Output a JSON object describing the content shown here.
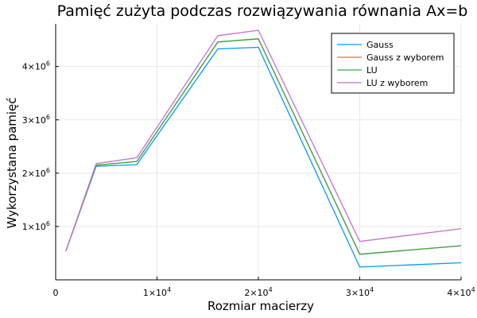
{
  "chart_data": {
    "type": "line",
    "title": "Pamięć zużyta podczas rozwiązywania równania Ax=b",
    "xlabel": "Rozmiar macierzy",
    "ylabel": "Wykorzystana pamięć",
    "xlim": [
      0,
      40000
    ],
    "ylim": [
      0,
      4800000
    ],
    "grid": true,
    "legend_position": "top-right",
    "x_ticks": [
      {
        "value": 0,
        "mant": "0",
        "exp": ""
      },
      {
        "value": 10000,
        "mant": "1×10",
        "exp": "4"
      },
      {
        "value": 20000,
        "mant": "2×10",
        "exp": "4"
      },
      {
        "value": 30000,
        "mant": "3×10",
        "exp": "4"
      },
      {
        "value": 40000,
        "mant": "4×10",
        "exp": "4"
      }
    ],
    "y_ticks": [
      {
        "value": 1000000,
        "mant": "1×10",
        "exp": "6"
      },
      {
        "value": 2000000,
        "mant": "2×10",
        "exp": "6"
      },
      {
        "value": 3000000,
        "mant": "3×10",
        "exp": "6"
      },
      {
        "value": 4000000,
        "mant": "4×10",
        "exp": "6"
      }
    ],
    "x": [
      1000,
      4000,
      8000,
      16000,
      20000,
      30000,
      40000
    ],
    "series": [
      {
        "name": "Gauss",
        "color": "#009af9",
        "values": [
          540000,
          2130000,
          2160000,
          4330000,
          4360000,
          240000,
          320000
        ]
      },
      {
        "name": "Gauss z wyborem",
        "color": "#e26f46",
        "values": [
          540000,
          2150000,
          2220000,
          4460000,
          4520000,
          480000,
          640000
        ]
      },
      {
        "name": "LU",
        "color": "#3da44d",
        "values": [
          540000,
          2150000,
          2220000,
          4460000,
          4520000,
          480000,
          640000
        ]
      },
      {
        "name": "LU z wyborem",
        "color": "#c271d2",
        "values": [
          540000,
          2180000,
          2290000,
          4580000,
          4680000,
          720000,
          960000
        ]
      }
    ]
  }
}
